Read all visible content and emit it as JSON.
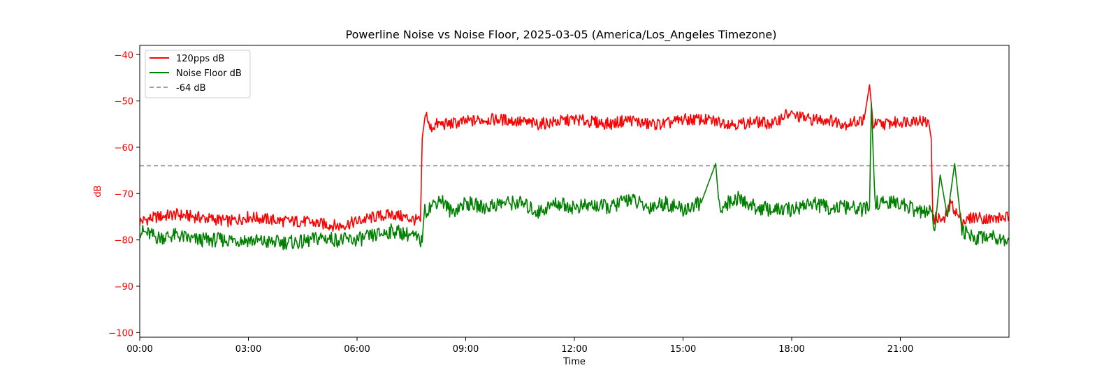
{
  "chart_data": {
    "type": "line",
    "title": "Powerline Noise vs Noise Floor, 2025-03-05 (America/Los_Angeles Timezone)",
    "xlabel": "Time",
    "ylabel": "dB",
    "x_ticks": [
      "00:00",
      "03:00",
      "06:00",
      "09:00",
      "12:00",
      "15:00",
      "18:00",
      "21:00"
    ],
    "x_tick_hours": [
      0,
      3,
      6,
      9,
      12,
      15,
      18,
      21
    ],
    "xlim_hours": [
      0,
      24
    ],
    "y_ticks": [
      -40,
      -50,
      -60,
      -70,
      -80,
      -90,
      -100
    ],
    "ylim": [
      -101,
      -38
    ],
    "grid": false,
    "legend_position": "top-left",
    "legend": [
      "120pps dB",
      "Noise Floor dB",
      "-64 dB"
    ],
    "colors": {
      "series_1": "#ff0000",
      "series_2": "#008000",
      "threshold": "#808080",
      "axis_y": "#ff0000"
    },
    "series": [
      {
        "name": "120pps dB",
        "color": "#ff0000",
        "x_hours": [
          0,
          0.5,
          1,
          1.5,
          2,
          2.5,
          3,
          3.5,
          4,
          4.5,
          5,
          5.5,
          6,
          6.5,
          7,
          7.5,
          7.75,
          7.8,
          7.9,
          8.0,
          8.2,
          8.5,
          9,
          9.5,
          10,
          10.5,
          11,
          11.5,
          12,
          12.5,
          13,
          13.5,
          14,
          14.5,
          15,
          15.5,
          16,
          16.5,
          17,
          17.5,
          17.8,
          18,
          18.5,
          19,
          19.5,
          20,
          20.15,
          20.25,
          20.5,
          21,
          21.5,
          21.8,
          21.85,
          21.9,
          22.0,
          22.2,
          22.4,
          22.6,
          22.8,
          23,
          23.5,
          24
        ],
        "values": [
          -76,
          -75,
          -74.5,
          -75,
          -75.5,
          -76,
          -75,
          -75.5,
          -76,
          -76,
          -76.5,
          -77,
          -76,
          -75,
          -74.5,
          -75.5,
          -76,
          -58,
          -52,
          -56,
          -55,
          -55,
          -54.5,
          -54,
          -54,
          -54.5,
          -55,
          -54.5,
          -54,
          -54.5,
          -55,
          -54,
          -55,
          -55,
          -54,
          -54,
          -54.5,
          -55,
          -54.5,
          -55,
          -53,
          -53,
          -54,
          -54,
          -55,
          -54,
          -46.5,
          -55,
          -55,
          -54.5,
          -54,
          -55,
          -58,
          -76,
          -75,
          -76,
          -72,
          -75,
          -76,
          -75,
          -75.5,
          -75
        ]
      },
      {
        "name": "Noise Floor dB",
        "color": "#008000",
        "x_hours": [
          0,
          0.5,
          1,
          1.5,
          2,
          2.5,
          3,
          3.5,
          4,
          4.5,
          5,
          5.5,
          6,
          6.5,
          7,
          7.5,
          7.8,
          7.85,
          8.0,
          8.3,
          8.6,
          9,
          9.5,
          10,
          10.5,
          11,
          11.5,
          12,
          12.5,
          13,
          13.5,
          14,
          14.5,
          15,
          15.5,
          15.9,
          16,
          16.5,
          17,
          17.5,
          18,
          18.5,
          19,
          19.5,
          20,
          20.15,
          20.2,
          20.3,
          20.5,
          21,
          21.5,
          21.85,
          21.95,
          22.1,
          22.3,
          22.5,
          22.7,
          23,
          23.5,
          24
        ],
        "values": [
          -78,
          -79.5,
          -79,
          -80,
          -80,
          -80,
          -80,
          -80.5,
          -80.5,
          -80.5,
          -79.5,
          -80,
          -80,
          -79,
          -78,
          -79,
          -80.5,
          -74,
          -73,
          -71,
          -74,
          -72,
          -73,
          -72,
          -72,
          -74,
          -72,
          -73,
          -72.5,
          -73,
          -71,
          -73,
          -72,
          -73.5,
          -72,
          -63.5,
          -73,
          -71,
          -73,
          -73.5,
          -73.5,
          -72,
          -73,
          -73,
          -73.5,
          -73,
          -50.5,
          -72,
          -72,
          -72,
          -74,
          -74,
          -78,
          -66,
          -75,
          -63.5,
          -78,
          -79.5,
          -79,
          -80
        ]
      }
    ],
    "reference_lines": [
      {
        "name": "-64 dB",
        "y": -64,
        "color": "#808080",
        "style": "dashed"
      }
    ]
  }
}
